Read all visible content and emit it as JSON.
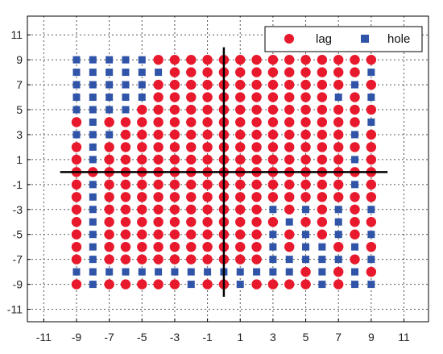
{
  "colors": {
    "lag": "#e8192c",
    "hole": "#2f54a8",
    "axis": "#000000",
    "background": "#ffffff"
  },
  "chart_data": {
    "type": "scatter",
    "title": "",
    "xlabel": "",
    "ylabel": "",
    "xlim": [
      -12,
      12.5
    ],
    "ylim": [
      -12,
      12.5
    ],
    "xticks": [
      -11,
      -9,
      -7,
      -5,
      -3,
      -1,
      1,
      3,
      5,
      7,
      9,
      11
    ],
    "yticks": [
      -11,
      -9,
      -7,
      -5,
      -3,
      -1,
      1,
      3,
      5,
      7,
      9,
      11
    ],
    "grid": true,
    "legend_position": "top-right",
    "lattice": {
      "x_min": -9,
      "x_max": 9,
      "y_min": -9,
      "y_max": 9,
      "step": 1
    },
    "crosshair": {
      "x": 0,
      "y": 0,
      "x_span": [
        -10,
        10
      ],
      "y_span": [
        -10,
        10
      ]
    },
    "series": [
      {
        "name": "lag",
        "marker": "circle",
        "color": "#e8192c"
      },
      {
        "name": "hole",
        "marker": "square",
        "color": "#2f54a8"
      }
    ],
    "grid_rows": [
      {
        "y": 9,
        "pattern": "HHHHHLLLLLLLLLLLLLL"
      },
      {
        "y": 8,
        "pattern": "HHHHHHLLLLLLLLLLLLH"
      },
      {
        "y": 7,
        "pattern": "HHHHHLLLLLLLLLLLLHL"
      },
      {
        "y": 6,
        "pattern": "HHHHHLLLLLLLLLLLHLH"
      },
      {
        "y": 5,
        "pattern": "HHHHLLLLLLLLLLLLLLL"
      },
      {
        "y": 4,
        "pattern": "LHLLLLLLLLLLLLLLLLH"
      },
      {
        "y": 3,
        "pattern": "HHHLLLLLLLLLLLLLLHL"
      },
      {
        "y": 2,
        "pattern": "LHLLLLLLLLLLLLLLLLL"
      },
      {
        "y": 1,
        "pattern": "LHLLLLLLLLLLLLLLLHL"
      },
      {
        "y": 0,
        "pattern": "LLLLLLLLLLLLLLLLLLL"
      },
      {
        "y": -1,
        "pattern": "LHLLLLLLLLLLLLLLLHL"
      },
      {
        "y": -2,
        "pattern": "LHLLLLLLLLLLLLLLLLL"
      },
      {
        "y": -3,
        "pattern": "LHLLLLLLLLLLHLHLHLH"
      },
      {
        "y": -4,
        "pattern": "LHLLLLLLLLLLLHLLHLL"
      },
      {
        "y": -5,
        "pattern": "LHLLLLLLLLLLHLHLHLH"
      },
      {
        "y": -6,
        "pattern": "LHLLLLLLLLLLHLHHLHL"
      },
      {
        "y": -7,
        "pattern": "LHLLLLLLLLLLHHHHHLH"
      },
      {
        "y": -8,
        "pattern": "HHHHHHHHHHHHHHLHLHL"
      },
      {
        "y": -9,
        "pattern": "LHLLLLLHLLHLLLLHLHH"
      }
    ]
  }
}
